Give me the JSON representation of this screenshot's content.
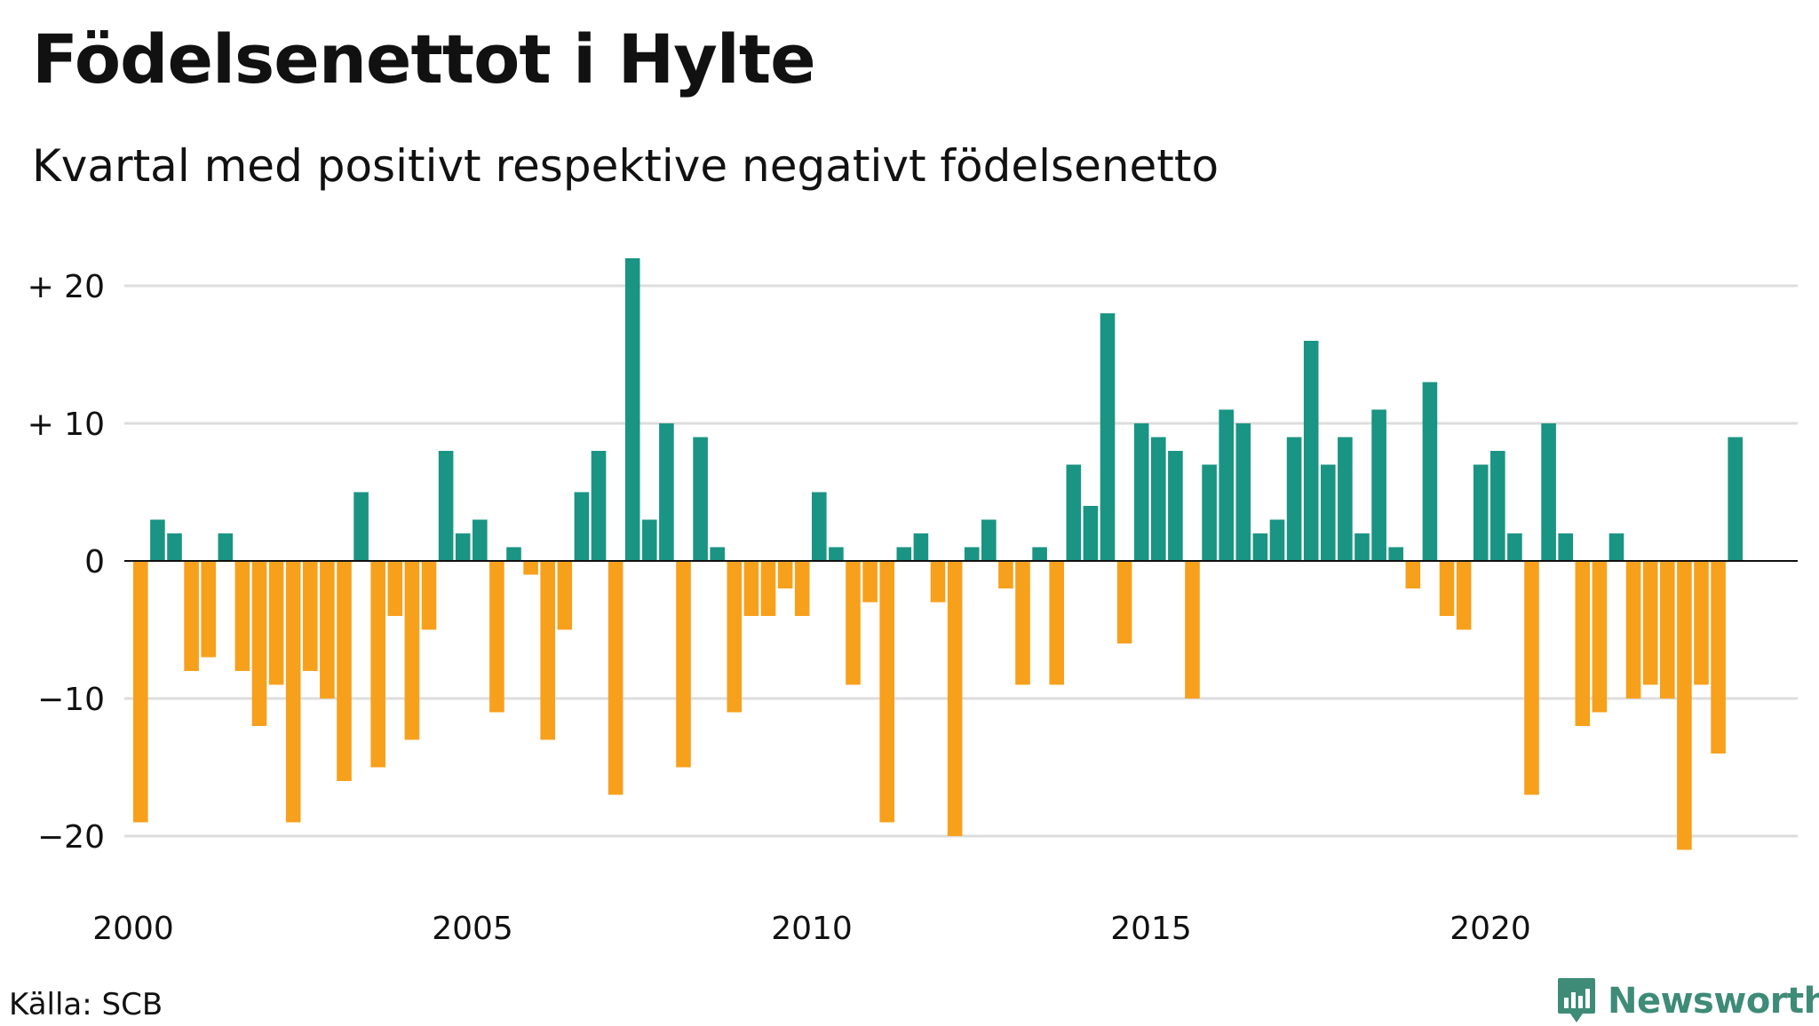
{
  "title": "Födelsenettot i Hylte",
  "subtitle": "Kvartal med positivt respektive negativt födelsenetto",
  "source": "Källa: SCB",
  "brand": "Newsworthy",
  "colors": {
    "positive": "#1a9483",
    "negative": "#f7a01c",
    "grid": "#dddddd",
    "zero_line": "#111111",
    "brand": "#3e8b78"
  },
  "chart_data": {
    "type": "bar",
    "x_start_year": 2000,
    "periods_per_year": 4,
    "values": [
      -19,
      3,
      2,
      -8,
      -7,
      2,
      -8,
      -12,
      -9,
      -19,
      -8,
      -10,
      -16,
      5,
      -15,
      -4,
      -13,
      -5,
      8,
      2,
      3,
      -11,
      1,
      -1,
      -13,
      -5,
      5,
      8,
      -17,
      22,
      3,
      10,
      -15,
      9,
      1,
      -11,
      -4,
      -4,
      -2,
      -4,
      5,
      1,
      -9,
      -3,
      -19,
      1,
      2,
      -3,
      -20,
      1,
      3,
      -2,
      -9,
      1,
      -9,
      7,
      4,
      18,
      -6,
      10,
      9,
      8,
      -10,
      7,
      11,
      10,
      2,
      3,
      9,
      16,
      7,
      9,
      2,
      11,
      1,
      -2,
      13,
      -4,
      -5,
      7,
      8,
      2,
      -17,
      10,
      2,
      -12,
      -11,
      2,
      -10,
      -9,
      -10,
      -21,
      -9,
      -14,
      9
    ],
    "xlabel": "",
    "ylabel": "",
    "ylim": [
      -24,
      22
    ],
    "y_ticks": [
      20,
      10,
      0,
      -10,
      -20
    ],
    "y_tick_labels": [
      "+ 20",
      "+ 10",
      "0",
      "−10",
      "−20"
    ],
    "x_ticks": [
      2000,
      2005,
      2010,
      2015,
      2020
    ],
    "x_tick_labels": [
      "2000",
      "2005",
      "2010",
      "2015",
      "2020"
    ],
    "grid": true,
    "legend": "none"
  }
}
